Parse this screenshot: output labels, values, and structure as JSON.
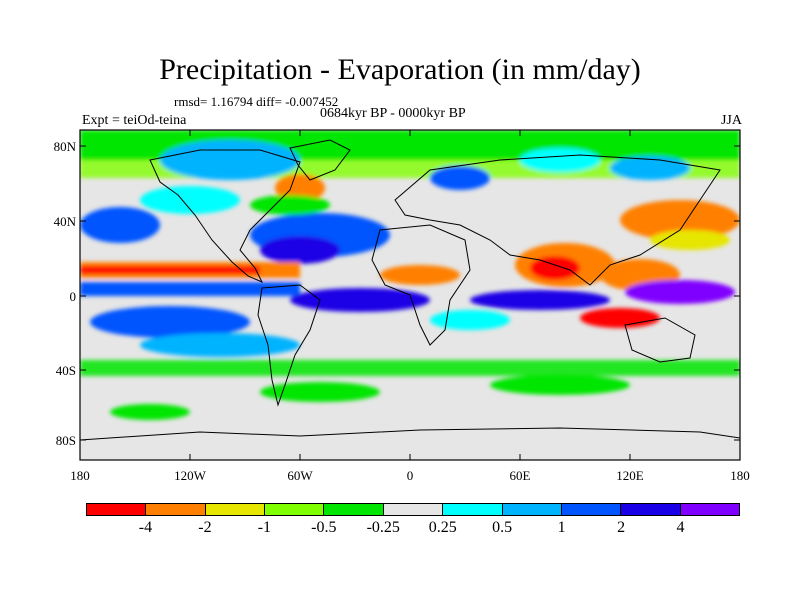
{
  "title": "Precipitation - Evaporation (in mm/day)",
  "stats": "rmsd= 1.16794 diff= -0.007452",
  "period": "0684kyr BP - 0000kyr BP",
  "experiment": "Expt = teiOd-teina",
  "season": "JJA",
  "lat_labels": [
    "80N",
    "40N",
    "0",
    "40S",
    "80S"
  ],
  "lon_labels": [
    "180",
    "120W",
    "60W",
    "0",
    "60E",
    "120E",
    "180"
  ],
  "colorbar": {
    "colors": [
      "#ff0000",
      "#ff8000",
      "#e6e600",
      "#80ff00",
      "#00e600",
      "#e6e6e6",
      "#00ffff",
      "#00b3ff",
      "#0055ff",
      "#1a00e6",
      "#8000ff"
    ],
    "labels": [
      "-4",
      "-2",
      "-1",
      "-0.5",
      "-0.25",
      "0.25",
      "0.5",
      "1",
      "2",
      "4"
    ]
  }
}
